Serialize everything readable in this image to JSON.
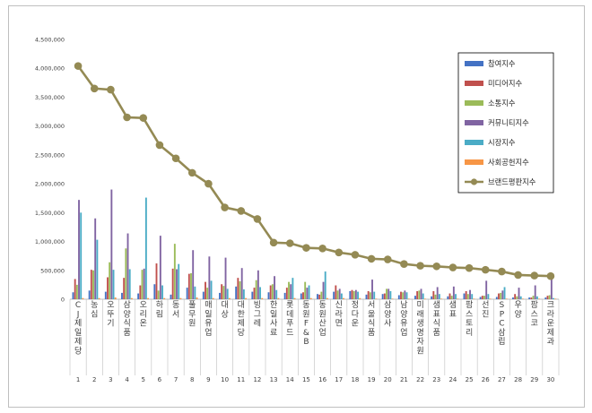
{
  "chart_data": {
    "type": "bar",
    "title": "",
    "xlabel": "",
    "ylabel": "",
    "ylim": [
      0,
      4500000
    ],
    "ytick_labels": [
      "0",
      "500,000",
      "1,000,000",
      "1,500,000",
      "2,000,000",
      "2,500,000",
      "3,000,000",
      "3,500,000",
      "4,000,000",
      "4,500,000"
    ],
    "ranks": [
      "1",
      "2",
      "3",
      "4",
      "5",
      "6",
      "7",
      "8",
      "9",
      "10",
      "11",
      "12",
      "13",
      "14",
      "15",
      "16",
      "17",
      "18",
      "19",
      "20",
      "21",
      "22",
      "23",
      "24",
      "25",
      "26",
      "27",
      "28",
      "29",
      "30"
    ],
    "categories": [
      "CJ제일제당",
      "농심",
      "오뚜기",
      "삼양식품",
      "오리온",
      "하림",
      "동서",
      "풀무원",
      "매일유업",
      "대상",
      "대한제당",
      "빙그레",
      "한일사료",
      "롯데푸드",
      "동원F&B",
      "동원산업",
      "신라면",
      "정다운",
      "서울식품",
      "삼양사",
      "남양유업",
      "미래생명자원",
      "샘표식품",
      "샘표",
      "팜스토리",
      "선진",
      "SPC삼립",
      "우양",
      "팜스코",
      "크라운제과"
    ],
    "legend_position": "top-right",
    "grid": false,
    "series": [
      {
        "name": "참여지수",
        "color": "#4472c4",
        "values": [
          120000,
          150000,
          130000,
          110000,
          100000,
          260000,
          80000,
          200000,
          130000,
          110000,
          220000,
          130000,
          120000,
          110000,
          100000,
          90000,
          130000,
          140000,
          80000,
          90000,
          70000,
          60000,
          50000,
          50000,
          100000,
          40000,
          40000,
          30000,
          30000,
          30000
        ]
      },
      {
        "name": "미디어지수",
        "color": "#c0504d",
        "values": [
          350000,
          510000,
          380000,
          370000,
          240000,
          620000,
          530000,
          440000,
          300000,
          260000,
          370000,
          200000,
          240000,
          200000,
          120000,
          80000,
          240000,
          160000,
          140000,
          100000,
          130000,
          140000,
          140000,
          100000,
          140000,
          60000,
          100000,
          90000,
          30000,
          60000
        ]
      },
      {
        "name": "소통지수",
        "color": "#9bbb59",
        "values": [
          250000,
          500000,
          640000,
          880000,
          510000,
          150000,
          960000,
          450000,
          200000,
          230000,
          310000,
          330000,
          260000,
          300000,
          300000,
          130000,
          150000,
          140000,
          120000,
          180000,
          120000,
          150000,
          80000,
          60000,
          90000,
          60000,
          110000,
          50000,
          60000,
          70000
        ]
      },
      {
        "name": "커뮤니티지수",
        "color": "#8064a2",
        "values": [
          1720000,
          1400000,
          1900000,
          1140000,
          530000,
          1100000,
          520000,
          850000,
          740000,
          720000,
          540000,
          500000,
          400000,
          260000,
          200000,
          300000,
          180000,
          160000,
          340000,
          180000,
          150000,
          180000,
          210000,
          220000,
          160000,
          320000,
          150000,
          200000,
          240000,
          420000
        ]
      },
      {
        "name": "시장지수",
        "color": "#4bacc6",
        "values": [
          1500000,
          1030000,
          510000,
          520000,
          1760000,
          240000,
          610000,
          220000,
          320000,
          180000,
          170000,
          210000,
          160000,
          370000,
          240000,
          480000,
          100000,
          130000,
          130000,
          140000,
          120000,
          100000,
          90000,
          90000,
          90000,
          90000,
          210000,
          50000,
          50000,
          20000
        ]
      },
      {
        "name": "사회공헌지수",
        "color": "#f79646",
        "values": [
          20000,
          20000,
          30000,
          20000,
          20000,
          20000,
          20000,
          30000,
          20000,
          20000,
          20000,
          20000,
          20000,
          20000,
          20000,
          20000,
          20000,
          20000,
          10000,
          10000,
          10000,
          10000,
          10000,
          10000,
          10000,
          10000,
          10000,
          10000,
          10000,
          10000
        ]
      },
      {
        "name": "브랜드평판지수",
        "color": "#948a54",
        "type": "line",
        "values": [
          4040000,
          3650000,
          3630000,
          3150000,
          3140000,
          2670000,
          2440000,
          2190000,
          2000000,
          1590000,
          1530000,
          1390000,
          980000,
          970000,
          890000,
          880000,
          810000,
          770000,
          700000,
          690000,
          610000,
          580000,
          570000,
          550000,
          540000,
          510000,
          480000,
          420000,
          410000,
          400000
        ]
      }
    ]
  }
}
